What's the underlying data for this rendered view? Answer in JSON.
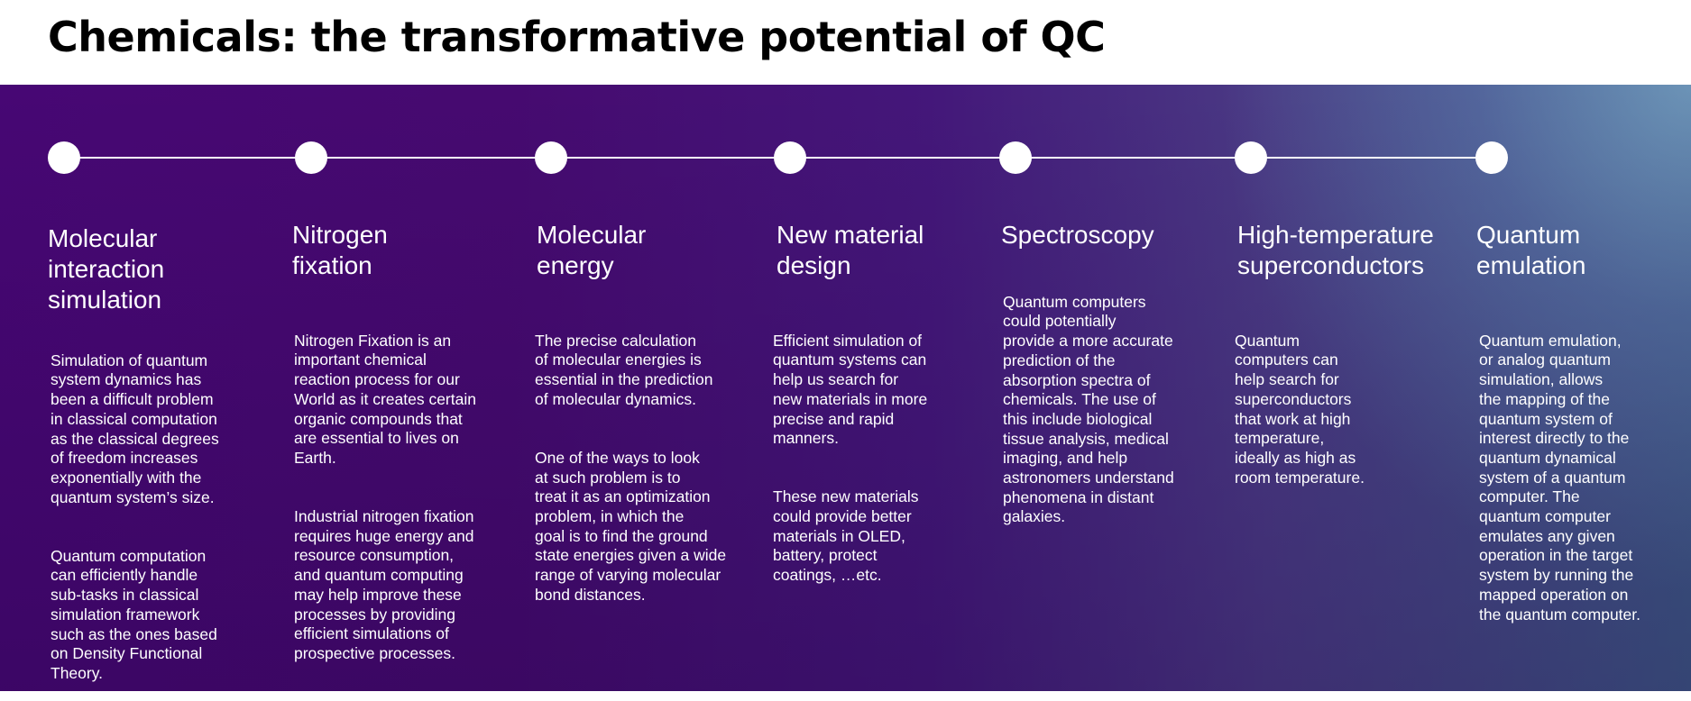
{
  "title": "Chemicals: the transformative potential of QC",
  "columns": [
    {
      "heading": "Molecular\ninteraction\nsimulation",
      "paragraphs": [
        "Simulation of quantum\nsystem dynamics has\nbeen a difficult problem\nin classical computation\nas the classical degrees\nof freedom increases\nexponentially with the\nquantum system’s size.",
        "Quantum computation\ncan efficiently handle\nsub-tasks in classical\nsimulation framework\nsuch as the ones based\non Density Functional\nTheory."
      ]
    },
    {
      "heading": "Nitrogen\nfixation",
      "paragraphs": [
        "Nitrogen Fixation is an\nimportant chemical\nreaction process for our\nWorld as it creates certain\norganic compounds that\nare essential to lives on\nEarth.",
        "Industrial nitrogen fixation\nrequires huge energy and\nresource consumption,\nand quantum computing\nmay help improve these\nprocesses by providing\nefficient simulations of\nprospective processes."
      ]
    },
    {
      "heading": "Molecular\nenergy",
      "paragraphs": [
        "The precise calculation\nof molecular energies is\nessential in the prediction\nof molecular dynamics.",
        "One of the ways to look\nat such problem is to\ntreat it as an optimization\nproblem, in which the\ngoal is to find the ground\nstate energies given a wide\nrange of varying molecular\nbond distances."
      ]
    },
    {
      "heading": "New material\ndesign",
      "paragraphs": [
        "Efficient simulation of\nquantum systems can\nhelp us search for\nnew materials in more\nprecise and rapid\nmanners.",
        "These new materials\ncould provide better\nmaterials in OLED,\nbattery, protect\ncoatings, …etc."
      ]
    },
    {
      "heading": "Spectroscopy",
      "paragraphs": [
        "Quantum computers\ncould potentially\nprovide a more accurate\nprediction of the\nabsorption spectra of\nchemicals. The use of\nthis include biological\ntissue analysis, medical\nimaging, and help\nastronomers understand\nphenomena in distant\ngalaxies."
      ]
    },
    {
      "heading": "High-temperature\nsuperconductors",
      "paragraphs": [
        "Quantum\ncomputers can\nhelp search for\nsuperconductors\nthat work at high\ntemperature,\nideally as high as\nroom temperature."
      ]
    },
    {
      "heading": "Quantum\nemulation",
      "paragraphs": [
        "Quantum emulation,\nor analog quantum\nsimulation, allows\nthe mapping of the\nquantum system of\ninterest directly to the\nquantum dynamical\nsystem of a quantum\ncomputer. The\nquantum computer\nemulates any given\noperation in the target\nsystem by running the\nmapped operation on\nthe quantum computer."
      ]
    }
  ]
}
